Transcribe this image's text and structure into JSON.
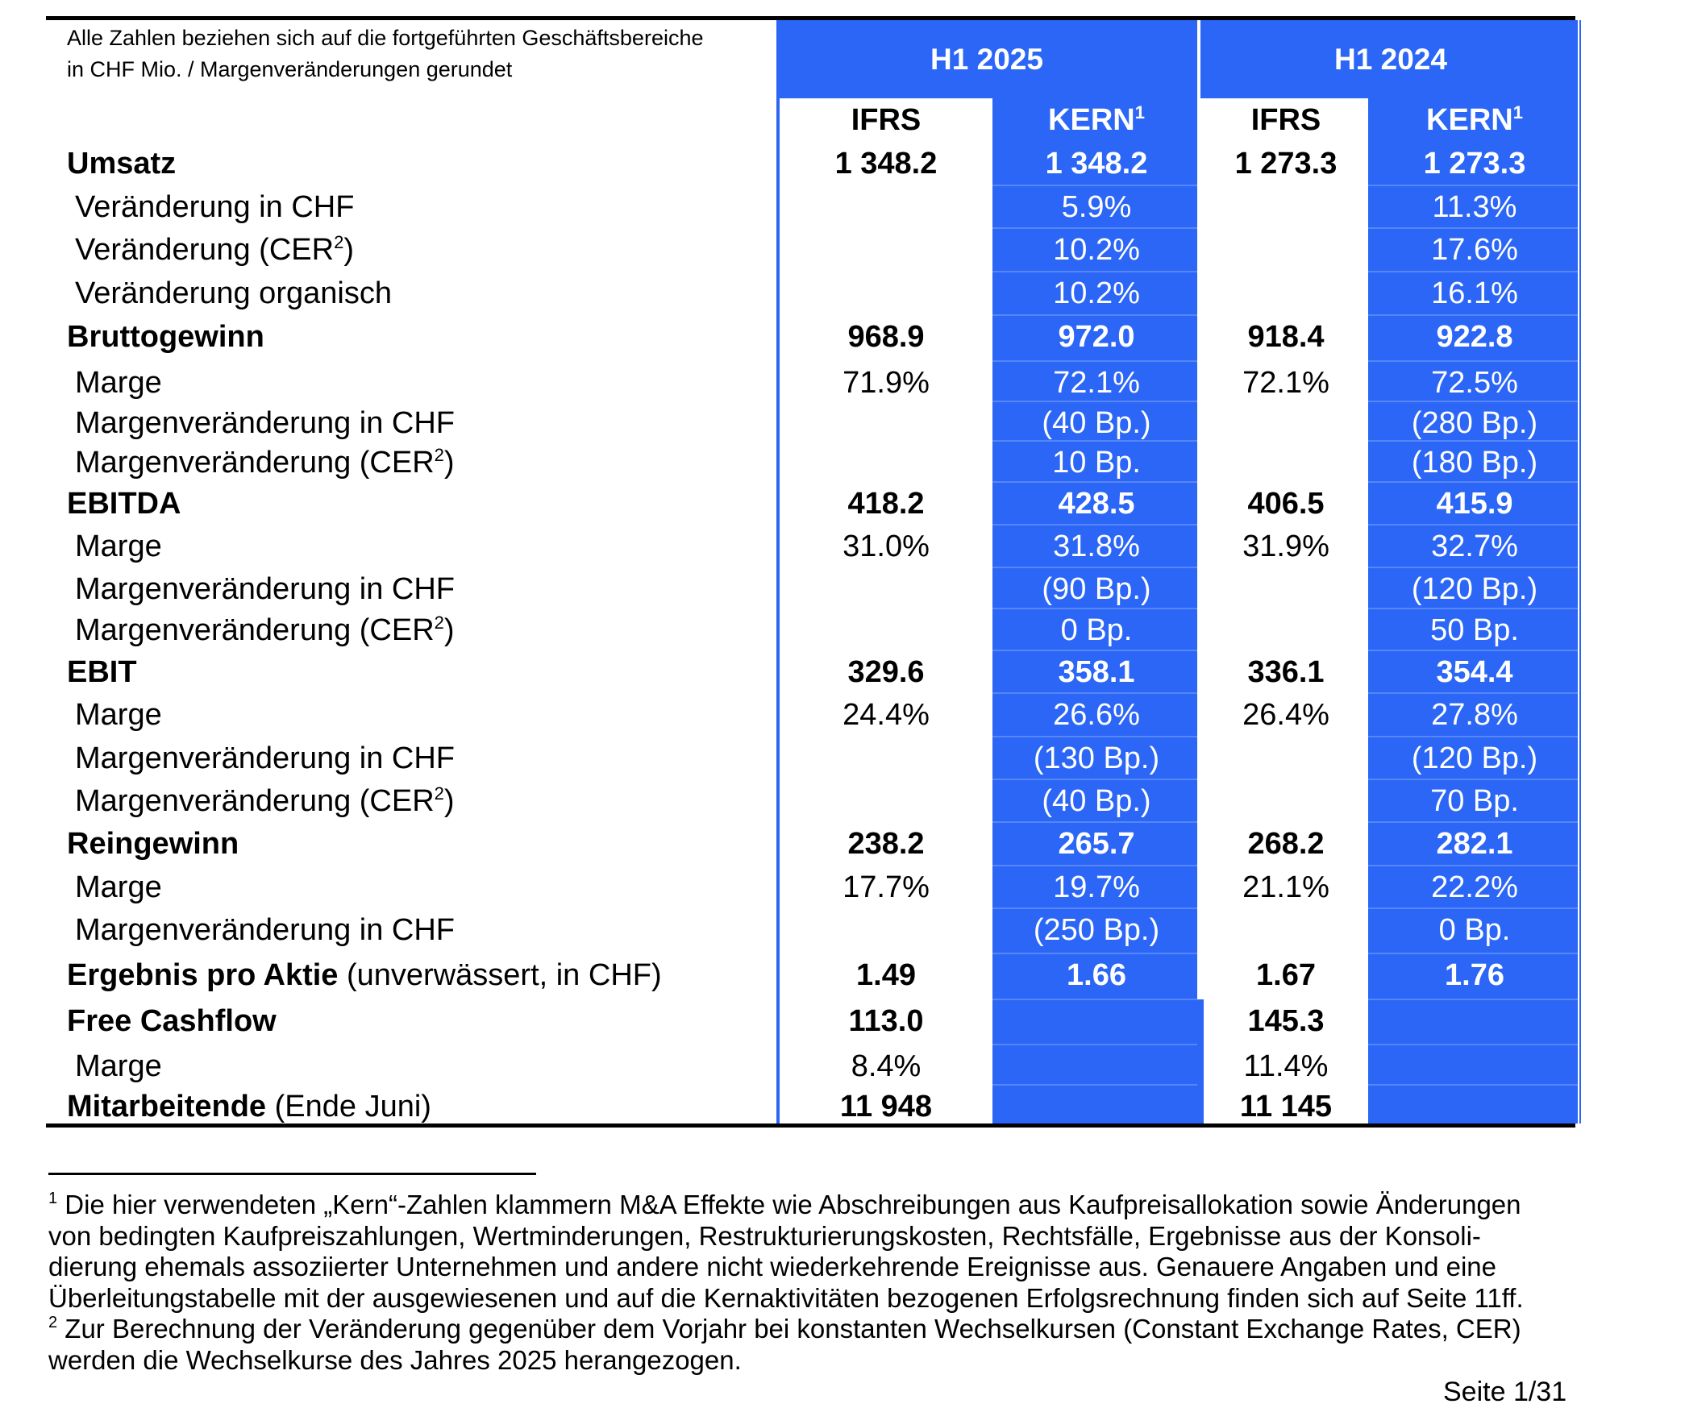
{
  "header": {
    "note_line1": "Alle Zahlen beziehen sich auf die fortgeführten Geschäftsbereiche",
    "note_line2": "in CHF Mio. / Margenveränderungen gerundet",
    "periods": [
      "H1 2025",
      "H1 2024"
    ],
    "ifrs_label": "IFRS",
    "kern_label": "KERN",
    "kern_sup": "1"
  },
  "colors": {
    "accent": "#2b66f6",
    "text": "#000000",
    "text_on_accent": "#ffffff"
  },
  "rows": [
    {
      "label": "Umsatz",
      "style": "main",
      "values": [
        "1 348.2",
        "1 348.2",
        "1 273.3",
        "1 273.3"
      ]
    },
    {
      "label": "Veränderung in CHF",
      "style": "sub",
      "values": [
        "",
        "5.9%",
        "",
        "11.3%"
      ]
    },
    {
      "label": "Veränderung (CER",
      "sup": "2",
      "label_suffix": ")",
      "style": "sub",
      "values": [
        "",
        "10.2%",
        "",
        "17.6%"
      ]
    },
    {
      "label": "Veränderung organisch",
      "style": "sub",
      "values": [
        "",
        "10.2%",
        "",
        "16.1%"
      ]
    },
    {
      "label": "Bruttogewinn",
      "style": "main",
      "values": [
        "968.9",
        "972.0",
        "918.4",
        "922.8"
      ]
    },
    {
      "label": "Marge",
      "style": "sub",
      "values": [
        "71.9%",
        "72.1%",
        "72.1%",
        "72.5%"
      ]
    },
    {
      "label": "Margenveränderung in CHF",
      "style": "sub",
      "values": [
        "",
        "(40 Bp.)",
        "",
        "(280 Bp.)"
      ]
    },
    {
      "label": "Margenveränderung (CER",
      "sup": "2",
      "label_suffix": ")",
      "style": "sub",
      "values": [
        "",
        "10 Bp.",
        "",
        "(180 Bp.)"
      ]
    },
    {
      "label": "EBITDA",
      "style": "main",
      "values": [
        "418.2",
        "428.5",
        "406.5",
        "415.9"
      ]
    },
    {
      "label": "Marge",
      "style": "sub",
      "values": [
        "31.0%",
        "31.8%",
        "31.9%",
        "32.7%"
      ]
    },
    {
      "label": "Margenveränderung in CHF",
      "style": "sub",
      "values": [
        "",
        "(90 Bp.)",
        "",
        "(120 Bp.)"
      ]
    },
    {
      "label": "Margenveränderung (CER",
      "sup": "2",
      "label_suffix": ")",
      "style": "sub",
      "values": [
        "",
        "0 Bp.",
        "",
        "50 Bp."
      ]
    },
    {
      "label": "EBIT",
      "style": "main",
      "values": [
        "329.6",
        "358.1",
        "336.1",
        "354.4"
      ]
    },
    {
      "label": "Marge",
      "style": "sub",
      "values": [
        "24.4%",
        "26.6%",
        "26.4%",
        "27.8%"
      ]
    },
    {
      "label": "Margenveränderung in CHF",
      "style": "sub",
      "values": [
        "",
        "(130 Bp.)",
        "",
        "(120 Bp.)"
      ]
    },
    {
      "label": "Margenveränderung (CER",
      "sup": "2",
      "label_suffix": ")",
      "style": "sub",
      "values": [
        "",
        "(40 Bp.)",
        "",
        "70 Bp."
      ]
    },
    {
      "label": "Reingewinn",
      "style": "main",
      "values": [
        "238.2",
        "265.7",
        "268.2",
        "282.1"
      ]
    },
    {
      "label": "Marge",
      "style": "sub",
      "values": [
        "17.7%",
        "19.7%",
        "21.1%",
        "22.2%"
      ]
    },
    {
      "label": "Margenveränderung in CHF",
      "style": "sub",
      "values": [
        "",
        "(250 Bp.)",
        "",
        "0 Bp."
      ]
    },
    {
      "label": "Ergebnis pro Aktie",
      "label_suffix_normal": " (unverwässert, in CHF)",
      "style": "main",
      "values": [
        "1.49",
        "1.66",
        "1.67",
        "1.76"
      ]
    },
    {
      "label": "Free Cashflow",
      "style": "main",
      "values": [
        "113.0",
        "",
        "145.3",
        ""
      ]
    },
    {
      "label": "Marge",
      "style": "sub",
      "values": [
        "8.4%",
        "",
        "11.4%",
        ""
      ]
    },
    {
      "label": "Mitarbeitende",
      "label_suffix_normal": " (Ende Juni)",
      "style": "main",
      "values": [
        "11 948",
        "",
        "11 145",
        ""
      ]
    }
  ],
  "footnotes": [
    {
      "sup": "1",
      "lines": [
        "Die hier verwendeten „Kern“-Zahlen klammern M&A Effekte wie Abschreibungen aus Kaufpreisallokation sowie Änderungen",
        "von bedingten Kaufpreiszahlungen, Wertminderungen, Restrukturierungskosten, Rechtsfälle, Ergebnisse aus der Konsoli-",
        "dierung ehemals assoziierter Unternehmen und andere nicht wiederkehrende Ereignisse aus. Genauere Angaben und eine",
        "Überleitungstabelle mit der ausgewiesenen und auf die Kernaktivitäten bezogenen Erfolgsrechnung finden sich auf Seite 11ff."
      ]
    },
    {
      "sup": "2",
      "lines": [
        "Zur Berechnung der Veränderung gegenüber dem Vorjahr bei konstanten Wechselkursen (Constant Exchange Rates, CER)",
        "werden die Wechselkurse des Jahres 2025 herangezogen."
      ]
    }
  ],
  "page_number": "Seite 1/31"
}
